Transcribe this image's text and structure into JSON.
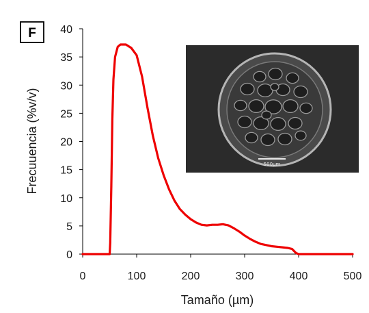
{
  "panel_label": "F",
  "colors": {
    "series": "#ee0000",
    "axis": "#000000",
    "micrograph_bg": "#2a2a2a"
  },
  "inset": {
    "icon": "sem-micrograph-particle",
    "scale_bar_label": "500µm"
  },
  "chart_data": {
    "type": "line",
    "xlabel": "Tamaño (µm)",
    "ylabel": "Frecuuencia (%v/v)",
    "xlim": [
      0,
      500
    ],
    "ylim": [
      0,
      40
    ],
    "xticks": [
      "0",
      "100",
      "200",
      "300",
      "400",
      "500"
    ],
    "yticks": [
      "0",
      "5",
      "10",
      "15",
      "20",
      "25",
      "30",
      "35",
      "40"
    ],
    "grid": false,
    "legend": "none",
    "series": [
      {
        "x": [
          0,
          50,
          51,
          53,
          55,
          57,
          60,
          65,
          70,
          80,
          90,
          100,
          110,
          120,
          130,
          140,
          150,
          160,
          170,
          180,
          190,
          200,
          210,
          220,
          230,
          240,
          250,
          260,
          270,
          280,
          290,
          300,
          310,
          320,
          330,
          340,
          350,
          360,
          370,
          380,
          388,
          392,
          395,
          400,
          500
        ],
        "y": [
          0,
          0,
          2,
          12,
          24,
          31,
          35,
          36.8,
          37.2,
          37.2,
          36.6,
          35.3,
          31.5,
          26.0,
          21.0,
          17.0,
          14.0,
          11.5,
          9.5,
          8.0,
          7.0,
          6.2,
          5.6,
          5.2,
          5.1,
          5.2,
          5.2,
          5.3,
          5.1,
          4.6,
          4.0,
          3.3,
          2.7,
          2.2,
          1.8,
          1.6,
          1.4,
          1.3,
          1.2,
          1.1,
          0.9,
          0.5,
          0.2,
          0,
          0
        ]
      }
    ]
  }
}
